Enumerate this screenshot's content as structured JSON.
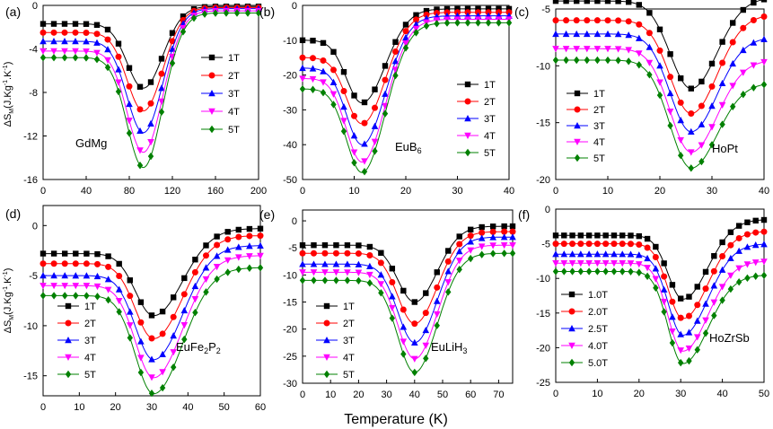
{
  "figure": {
    "xlabel": "Temperature (K)",
    "ylabel_main": "ΔS",
    "ylabel_sub": "M",
    "ylabel_unit": "(J.Kg",
    "ylabel_exp1": "-1",
    "ylabel_mid": ".K",
    "ylabel_exp2": "-1",
    "ylabel_close": ")"
  },
  "colors": {
    "1T": "#000000",
    "2T": "#ff0000",
    "3T": "#0000ff",
    "4T": "#ff00ff",
    "5T": "#008000"
  },
  "chart_data": [
    {
      "panel": "(a)",
      "type": "line",
      "compound": "GdMg",
      "compound_sub": "",
      "xlim": [
        0,
        200
      ],
      "ylim": [
        -16,
        0
      ],
      "xticks": [
        0,
        40,
        80,
        120,
        160,
        200
      ],
      "xtick_labels": [
        "0",
        "40",
        "80",
        "120",
        "160",
        "200"
      ],
      "yticks": [
        0,
        -4,
        -8,
        -12,
        -16
      ],
      "ytick_labels": [
        "0",
        "-4",
        "-8",
        "-12",
        "-16"
      ],
      "center": 93,
      "width_left": 15,
      "width_right": 18,
      "marker_x": [
        0,
        10,
        20,
        30,
        40,
        50,
        60,
        70,
        80,
        90,
        100,
        110,
        120,
        130,
        140,
        150,
        160,
        170,
        180,
        190,
        200
      ],
      "series": [
        {
          "name": "1T",
          "marker": "square",
          "baseline_left": -1.7,
          "baseline_right": -0.1,
          "peak": -7.6
        },
        {
          "name": "2T",
          "marker": "circle",
          "baseline_left": -2.5,
          "baseline_right": -0.2,
          "peak": -9.7
        },
        {
          "name": "3T",
          "marker": "triangle-up",
          "baseline_left": -3.3,
          "baseline_right": -0.3,
          "peak": -11.7
        },
        {
          "name": "4T",
          "marker": "triangle-down",
          "baseline_left": -4.2,
          "baseline_right": -0.5,
          "peak": -13.5
        },
        {
          "name": "5T",
          "marker": "diamond",
          "baseline_left": -4.8,
          "baseline_right": -0.7,
          "peak": -14.9
        }
      ],
      "legend": {
        "labels": [
          "1T",
          "2T",
          "3T",
          "4T",
          "5T"
        ]
      }
    },
    {
      "panel": "(b)",
      "type": "line",
      "compound": "EuB",
      "compound_sub": "6",
      "xlim": [
        0,
        40
      ],
      "ylim": [
        -50,
        0
      ],
      "xticks": [
        0,
        10,
        20,
        30,
        40
      ],
      "xtick_labels": [
        "0",
        "10",
        "20",
        "30",
        "40"
      ],
      "yticks": [
        0,
        -10,
        -20,
        -30,
        -40,
        -50
      ],
      "ytick_labels": [
        "0",
        "-10",
        "-20",
        "-30",
        "-40",
        "-50"
      ],
      "center": 11.5,
      "width_left": 3,
      "width_right": 4.5,
      "marker_x": [
        0,
        2,
        4,
        6,
        8,
        10,
        12,
        14,
        16,
        18,
        20,
        22,
        24,
        26,
        28,
        30,
        32,
        34,
        36,
        38,
        40
      ],
      "series": [
        {
          "name": "1T",
          "marker": "square",
          "baseline_left": -10,
          "baseline_right": -1,
          "peak": -28
        },
        {
          "name": "2T",
          "marker": "circle",
          "baseline_left": -15,
          "baseline_right": -2,
          "peak": -34
        },
        {
          "name": "3T",
          "marker": "triangle-up",
          "baseline_left": -18,
          "baseline_right": -3,
          "peak": -40
        },
        {
          "name": "4T",
          "marker": "triangle-down",
          "baseline_left": -21,
          "baseline_right": -4,
          "peak": -45
        },
        {
          "name": "5T",
          "marker": "diamond",
          "baseline_left": -24,
          "baseline_right": -5,
          "peak": -48
        }
      ],
      "legend": {
        "labels": [
          "1T",
          "2T",
          "3T",
          "4T",
          "5T"
        ]
      }
    },
    {
      "panel": "(c)",
      "type": "line",
      "compound": "HoPt",
      "compound_sub": "",
      "xlim": [
        0,
        40
      ],
      "ylim": [
        -20,
        -5
      ],
      "xticks": [
        0,
        10,
        20,
        30,
        40
      ],
      "xtick_labels": [
        "0",
        "10",
        "20",
        "30",
        "40"
      ],
      "yticks": [
        -5,
        -10,
        -15,
        -20
      ],
      "ytick_labels": [
        "-5",
        "-10",
        "-15",
        "-20"
      ],
      "center": 26,
      "width_left": 4,
      "width_right": 5,
      "marker_x": [
        0,
        2,
        4,
        6,
        8,
        10,
        12,
        14,
        16,
        18,
        20,
        22,
        24,
        26,
        28,
        30,
        32,
        34,
        36,
        38,
        40
      ],
      "series": [
        {
          "name": "1T",
          "marker": "square",
          "baseline_left": -4.3,
          "baseline_right": -4.0,
          "peak": -12
        },
        {
          "name": "2T",
          "marker": "circle",
          "baseline_left": -6.0,
          "baseline_right": -5.5,
          "peak": -14.2
        },
        {
          "name": "3T",
          "marker": "triangle-up",
          "baseline_left": -7.2,
          "baseline_right": -7.5,
          "peak": -15.8
        },
        {
          "name": "4T",
          "marker": "triangle-down",
          "baseline_left": -8.5,
          "baseline_right": -9.5,
          "peak": -17.6
        },
        {
          "name": "5T",
          "marker": "diamond",
          "baseline_left": -9.5,
          "baseline_right": -11.5,
          "peak": -19
        }
      ],
      "legend": {
        "labels": [
          "1T",
          "2T",
          "3T",
          "4T",
          "5T"
        ]
      }
    },
    {
      "panel": "(d)",
      "type": "line",
      "compound": "EuFe",
      "compound_sub": "2",
      "compound_tail": "P",
      "compound_tail_sub": "2",
      "xlim": [
        0,
        60
      ],
      "ylim": [
        -17,
        2
      ],
      "xticks": [
        0,
        10,
        20,
        30,
        40,
        50,
        60
      ],
      "xtick_labels": [
        "0",
        "10",
        "20",
        "30",
        "40",
        "50",
        "60"
      ],
      "yticks": [
        0,
        -5,
        -10,
        -15
      ],
      "ytick_labels": [
        "0",
        "-5",
        "-10",
        "-15"
      ],
      "center": 30.5,
      "width_left": 5,
      "width_right": 8,
      "marker_x": [
        0,
        3,
        6,
        9,
        12,
        15,
        18,
        21,
        24,
        27,
        30,
        33,
        36,
        39,
        42,
        45,
        48,
        51,
        54,
        57,
        60
      ],
      "series": [
        {
          "name": "1T",
          "marker": "square",
          "baseline_left": -2.8,
          "baseline_right": -0.3,
          "peak": -9
        },
        {
          "name": "2T",
          "marker": "circle",
          "baseline_left": -3.8,
          "baseline_right": -1.0,
          "peak": -11.3
        },
        {
          "name": "3T",
          "marker": "triangle-up",
          "baseline_left": -5.0,
          "baseline_right": -2.0,
          "peak": -13.4
        },
        {
          "name": "4T",
          "marker": "triangle-down",
          "baseline_left": -6.0,
          "baseline_right": -3.0,
          "peak": -15.2
        },
        {
          "name": "5T",
          "marker": "diamond",
          "baseline_left": -7.0,
          "baseline_right": -4.2,
          "peak": -16.8
        }
      ],
      "legend": {
        "labels": [
          "1T",
          "2T",
          "3T",
          "4T",
          "5T"
        ]
      }
    },
    {
      "panel": "(e)",
      "type": "line",
      "compound": "EuLiH",
      "compound_sub": "3",
      "xlim": [
        0,
        75
      ],
      "ylim": [
        -30,
        2
      ],
      "xticks": [
        0,
        10,
        20,
        30,
        40,
        50,
        60,
        70
      ],
      "xtick_labels": [
        "0",
        "10",
        "20",
        "30",
        "40",
        "50",
        "60",
        "70"
      ],
      "yticks": [
        0,
        -5,
        -10,
        -15,
        -20,
        -25,
        -30
      ],
      "ytick_labels": [
        "0",
        "-5",
        "-10",
        "-15",
        "-20",
        "-25",
        "-30"
      ],
      "center": 40,
      "width_left": 6,
      "width_right": 8,
      "marker_x": [
        0,
        4,
        8,
        12,
        16,
        20,
        24,
        28,
        32,
        36,
        40,
        44,
        48,
        52,
        56,
        60,
        64,
        68,
        72,
        75
      ],
      "series": [
        {
          "name": "1T",
          "marker": "square",
          "baseline_left": -4.5,
          "baseline_right": -1.0,
          "peak": -15
        },
        {
          "name": "2T",
          "marker": "circle",
          "baseline_left": -6.0,
          "baseline_right": -2.0,
          "peak": -19
        },
        {
          "name": "3T",
          "marker": "triangle-up",
          "baseline_left": -8.0,
          "baseline_right": -3.0,
          "peak": -22.5
        },
        {
          "name": "4T",
          "marker": "triangle-down",
          "baseline_left": -9.5,
          "baseline_right": -4.5,
          "peak": -25.5
        },
        {
          "name": "5T",
          "marker": "diamond",
          "baseline_left": -11.0,
          "baseline_right": -6.0,
          "peak": -28
        }
      ],
      "legend": {
        "labels": [
          "1T",
          "2T",
          "3T",
          "4T",
          "5T"
        ]
      }
    },
    {
      "panel": "(f)",
      "type": "line",
      "compound": "HoZrSb",
      "compound_sub": "",
      "xlim": [
        0,
        50
      ],
      "ylim": [
        -25,
        0
      ],
      "xticks": [
        0,
        10,
        20,
        30,
        40,
        50
      ],
      "xtick_labels": [
        "0",
        "10",
        "20",
        "30",
        "40",
        "50"
      ],
      "yticks": [
        0,
        -5,
        -10,
        -15,
        -20,
        -25
      ],
      "ytick_labels": [
        "0",
        "-5",
        "-10",
        "-15",
        "-20",
        "-25"
      ],
      "center": 30.5,
      "width_left": 3.5,
      "width_right": 6,
      "marker_x": [
        0,
        2,
        4,
        6,
        8,
        10,
        12,
        14,
        16,
        18,
        20,
        22,
        24,
        26,
        28,
        30,
        32,
        34,
        36,
        38,
        40,
        42,
        44,
        46,
        48,
        50
      ],
      "series": [
        {
          "name": "1.0T",
          "marker": "square",
          "baseline_left": -3.8,
          "baseline_right": -1.5,
          "peak": -13
        },
        {
          "name": "2.0T",
          "marker": "circle",
          "baseline_left": -5.0,
          "baseline_right": -3.2,
          "peak": -15.8
        },
        {
          "name": "2.5T",
          "marker": "triangle-up",
          "baseline_left": -6.5,
          "baseline_right": -5.0,
          "peak": -18.2
        },
        {
          "name": "4.0T",
          "marker": "triangle-down",
          "baseline_left": -7.8,
          "baseline_right": -7.5,
          "peak": -20.5
        },
        {
          "name": "5.0T",
          "marker": "diamond",
          "baseline_left": -9.0,
          "baseline_right": -9.5,
          "peak": -22.3
        }
      ],
      "legend": {
        "labels": [
          "1.0T",
          "2.0T",
          "2.5T",
          "4.0T",
          "5.0T"
        ]
      }
    }
  ]
}
